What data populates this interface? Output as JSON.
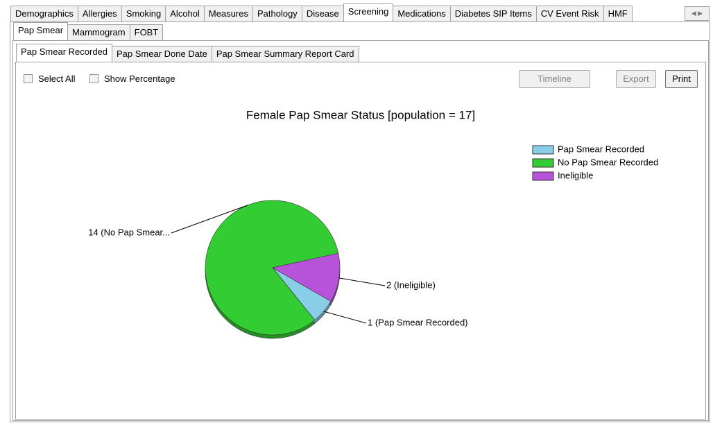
{
  "tabs": [
    "Demographics",
    "Allergies",
    "Smoking",
    "Alcohol",
    "Measures",
    "Pathology",
    "Disease",
    "Screening",
    "Medications",
    "Diabetes SIP Items",
    "CV Event Risk",
    "HMF"
  ],
  "subtabs": [
    "Pap Smear",
    "Mammogram",
    "FOBT"
  ],
  "reporttabs": [
    "Pap Smear Recorded",
    "Pap Smear Done Date",
    "Pap Smear Summary Report Card"
  ],
  "checkboxes": [
    "Select All",
    "Show Percentage"
  ],
  "buttons": [
    "Timeline",
    "Export",
    "Print"
  ],
  "chart_data": {
    "type": "pie",
    "title": "Female Pap Smear Status [population = 17]",
    "categories": [
      "Pap Smear Recorded",
      "No Pap Smear Recorded",
      "Ineligible"
    ],
    "values": [
      1,
      14,
      2
    ],
    "value_labels": [
      "1 (Pap Smear Recorded)",
      "14 (No Pap Smear...",
      "2 (Ineligible)"
    ],
    "colors": [
      "#87cee6",
      "#33cc33",
      "#b653d9"
    ]
  }
}
